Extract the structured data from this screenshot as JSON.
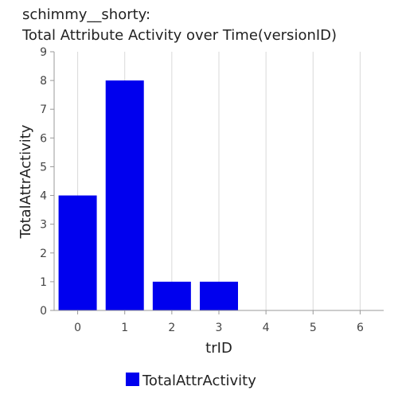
{
  "chart_data": {
    "type": "bar",
    "title_line1": "schimmy__shorty:",
    "title_line2": "Total Attribute Activity over Time(versionID)",
    "xlabel": "trID",
    "ylabel": "TotalAttrActivity",
    "categories": [
      "0",
      "1",
      "2",
      "3",
      "4",
      "5",
      "6"
    ],
    "series": [
      {
        "name": "TotalAttrActivity",
        "values": [
          4,
          8,
          1,
          1,
          0,
          0,
          0
        ],
        "color": "#0000ee"
      }
    ],
    "ylim": [
      0,
      9
    ],
    "yticks": [
      "0",
      "1",
      "2",
      "3",
      "4",
      "5",
      "6",
      "7",
      "8",
      "9"
    ],
    "grid": "vertical",
    "legend_position": "bottom"
  }
}
